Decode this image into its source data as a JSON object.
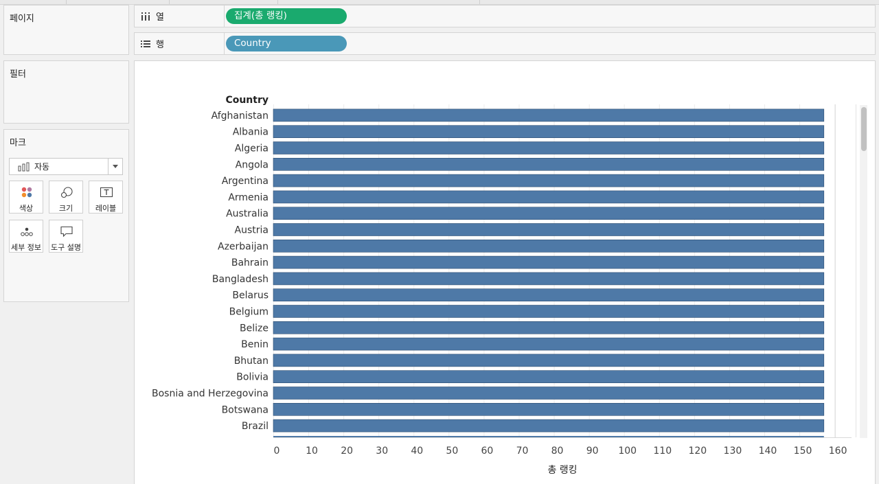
{
  "panels": {
    "pages": {
      "title": "페이지"
    },
    "filters": {
      "title": "필터"
    },
    "marks": {
      "title": "마크",
      "mark_type": "자동",
      "buttons": [
        {
          "label": "색상",
          "icon": "color-dots-icon"
        },
        {
          "label": "크기",
          "icon": "size-circles-icon"
        },
        {
          "label": "레이블",
          "icon": "label-text-icon"
        },
        {
          "label": "세부 정보",
          "icon": "detail-dots-icon"
        },
        {
          "label": "도구 설명",
          "icon": "tooltip-bubble-icon"
        }
      ]
    }
  },
  "shelves": {
    "columns": {
      "label": "열",
      "pill": "집계(총 랭킹)",
      "pill_color": "#1aaa6e"
    },
    "rows": {
      "label": "행",
      "pill": "Country",
      "pill_color": "#4a98b8"
    }
  },
  "chart_data": {
    "type": "bar",
    "orientation": "horizontal",
    "row_header": "Country",
    "categories": [
      "Afghanistan",
      "Albania",
      "Algeria",
      "Angola",
      "Argentina",
      "Armenia",
      "Australia",
      "Austria",
      "Azerbaijan",
      "Bahrain",
      "Bangladesh",
      "Belarus",
      "Belgium",
      "Belize",
      "Benin",
      "Bhutan",
      "Bolivia",
      "Bosnia and Herzegovina",
      "Botswana",
      "Brazil"
    ],
    "values": [
      157,
      157,
      157,
      157,
      157,
      157,
      157,
      157,
      157,
      157,
      157,
      157,
      157,
      157,
      157,
      157,
      157,
      157,
      157,
      157
    ],
    "xlabel": "총 랭킹",
    "xticks": [
      0,
      10,
      20,
      30,
      40,
      50,
      60,
      70,
      80,
      90,
      100,
      110,
      120,
      130,
      140,
      150,
      160
    ],
    "xlim": [
      0,
      163
    ],
    "grid": true,
    "bar_color": "#4e79a7"
  }
}
